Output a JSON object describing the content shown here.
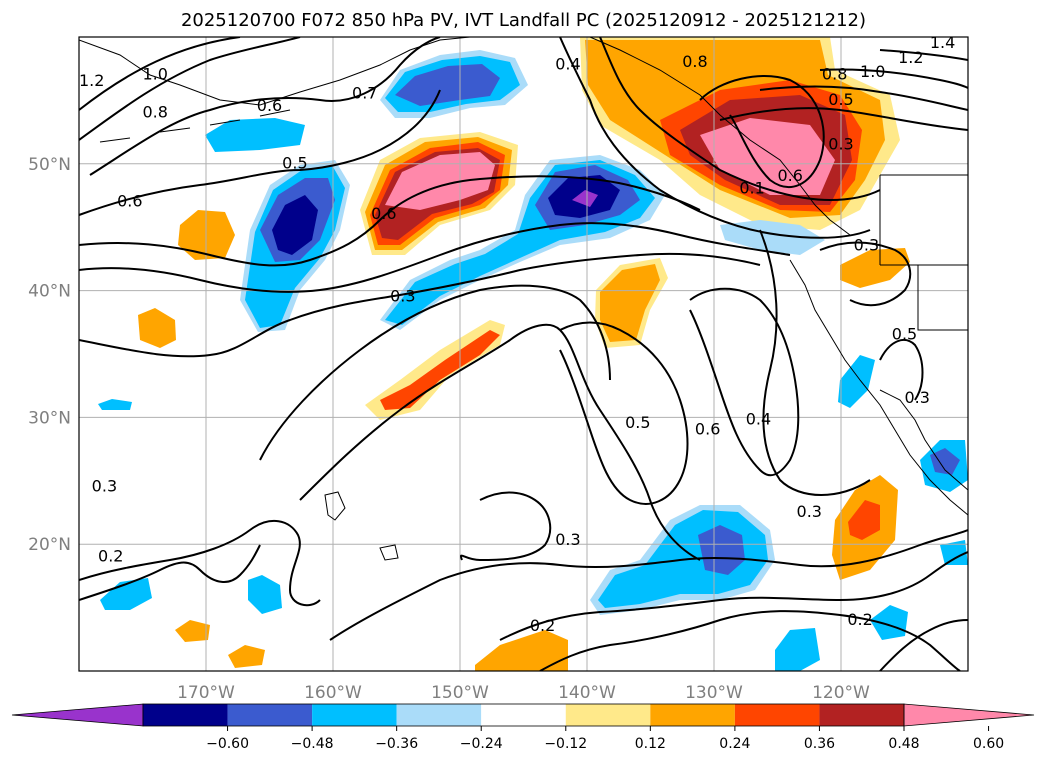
{
  "title": "2025120700 F072 850 hPa PV, IVT Landfall PC (2025120912 - 2025121212)",
  "map": {
    "lon_range": [
      -180,
      -110
    ],
    "lat_range": [
      10,
      60
    ],
    "lat_ticks": [
      {
        "value": 50,
        "label": "50°N"
      },
      {
        "value": 40,
        "label": "40°N"
      },
      {
        "value": 30,
        "label": "30°N"
      },
      {
        "value": 20,
        "label": "20°N"
      }
    ],
    "lon_ticks": [
      {
        "value": -170,
        "label": "170°W"
      },
      {
        "value": -160,
        "label": "160°W"
      },
      {
        "value": -150,
        "label": "150°W"
      },
      {
        "value": -140,
        "label": "140°W"
      },
      {
        "value": -130,
        "label": "130°W"
      },
      {
        "value": -120,
        "label": "120°W"
      }
    ],
    "gridlines": true,
    "contour_labels": [
      {
        "text": "1.2",
        "lon": -179,
        "lat": 56.5
      },
      {
        "text": "1.0",
        "lon": -174,
        "lat": 57
      },
      {
        "text": "0.8",
        "lon": -174,
        "lat": 54
      },
      {
        "text": "0.6",
        "lon": -165,
        "lat": 54.5
      },
      {
        "text": "0.7",
        "lon": -157.5,
        "lat": 55.5
      },
      {
        "text": "0.5",
        "lon": -163,
        "lat": 50
      },
      {
        "text": "0.6",
        "lon": -176,
        "lat": 47
      },
      {
        "text": "0.6",
        "lon": -156,
        "lat": 46
      },
      {
        "text": "0.3",
        "lon": -154.5,
        "lat": 39.5
      },
      {
        "text": "0.4",
        "lon": -141.5,
        "lat": 57.8
      },
      {
        "text": "0.8",
        "lon": -131.5,
        "lat": 58
      },
      {
        "text": "0.8",
        "lon": -120.5,
        "lat": 57
      },
      {
        "text": "1.0",
        "lon": -117.5,
        "lat": 57.2
      },
      {
        "text": "1.2",
        "lon": -114.5,
        "lat": 58.3
      },
      {
        "text": "1.4",
        "lon": -112,
        "lat": 59.5
      },
      {
        "text": "0.5",
        "lon": -120,
        "lat": 55
      },
      {
        "text": "0.3",
        "lon": -120,
        "lat": 51.5
      },
      {
        "text": "0.6",
        "lon": -124,
        "lat": 49
      },
      {
        "text": "0.1",
        "lon": -127,
        "lat": 48
      },
      {
        "text": "0.3",
        "lon": -118,
        "lat": 43.5
      },
      {
        "text": "0.5",
        "lon": -115,
        "lat": 36.5
      },
      {
        "text": "0.3",
        "lon": -114,
        "lat": 31.5
      },
      {
        "text": "0.5",
        "lon": -136,
        "lat": 29.5
      },
      {
        "text": "0.6",
        "lon": -130.5,
        "lat": 29
      },
      {
        "text": "0.4",
        "lon": -126.5,
        "lat": 29.8
      },
      {
        "text": "0.3",
        "lon": -141.5,
        "lat": 20.3
      },
      {
        "text": "0.3",
        "lon": -178,
        "lat": 24.5
      },
      {
        "text": "0.2",
        "lon": -177.5,
        "lat": 19
      },
      {
        "text": "0.2",
        "lon": -143.5,
        "lat": 13.5
      },
      {
        "text": "0.3",
        "lon": -122.5,
        "lat": 22.5
      },
      {
        "text": "0.2",
        "lon": -118.5,
        "lat": 14
      }
    ]
  },
  "colorbar": {
    "ticks": [
      "−0.60",
      "−0.48",
      "−0.36",
      "−0.24",
      "−0.12",
      "0.12",
      "0.24",
      "0.36",
      "0.48",
      "0.60"
    ],
    "colors": [
      "#9933cc",
      "#00008b",
      "#3b5bcf",
      "#00bfff",
      "#aadcf9",
      "#ffffff",
      "#ffe98a",
      "#ffa500",
      "#ff4500",
      "#b22222",
      "#ff88aa"
    ]
  },
  "colors": {
    "outline": "#000000",
    "grid": "#b0b0b0",
    "tick_label": "#7f7f7f"
  }
}
